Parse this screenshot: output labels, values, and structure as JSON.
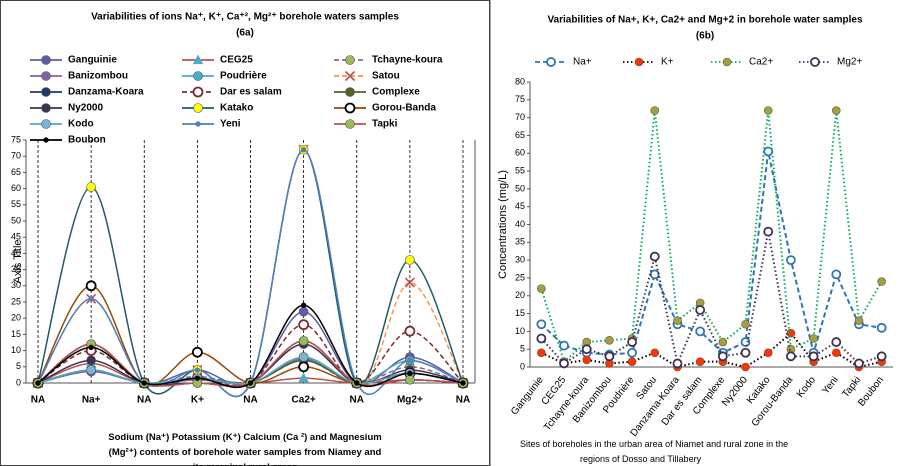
{
  "chart_data": [
    {
      "type": "line",
      "smooth": true,
      "title": "Variabilities of ions Na⁺, K⁺, Ca⁺², Mg²⁺ borehole waters samples",
      "subtitle": "(6a)",
      "y_label": "Axis Title",
      "x_label": "Sodium (Na⁺) Potassium (K⁺) Calcium (Ca ²) and Magnesium (Mg²⁺) contents of borehole water samples from Niamey and its marginal rural areas",
      "categories": [
        "NA",
        "Na+",
        "NA",
        "K+",
        "NA",
        "Ca2+",
        "NA",
        "Mg2+",
        "NA"
      ],
      "ylim": [
        0,
        75
      ],
      "yticks": [
        0,
        5,
        10,
        15,
        20,
        25,
        30,
        35,
        40,
        45,
        50,
        55,
        60,
        65,
        70,
        75
      ],
      "category_lines": true,
      "legend": "top",
      "legend_columns": 3,
      "series": [
        {
          "name": "Ganguinie",
          "color": "#5b5ea6",
          "marker": "circle",
          "marker_color": "#5b5ea6",
          "values": [
            0,
            12,
            0,
            4,
            0,
            22,
            0,
            8,
            0
          ]
        },
        {
          "name": "CEG25",
          "color": "#c0504d",
          "marker": "triangle",
          "marker_color": "#4bacc6",
          "values": [
            0,
            6,
            0,
            1,
            0,
            1.5,
            0,
            1,
            0
          ]
        },
        {
          "name": "Tchayne-koura",
          "color": "#8064a2",
          "dash": "dashed",
          "marker": "circle",
          "marker_color": "#9bbb59",
          "values": [
            0,
            4,
            0,
            2,
            0,
            7,
            0,
            5,
            0
          ]
        },
        {
          "name": "Banizombou",
          "color": "#8064a2",
          "marker": "circle",
          "marker_color": "#8064a2",
          "values": [
            0,
            3.5,
            0,
            1,
            0,
            7.5,
            0,
            3,
            0
          ]
        },
        {
          "name": "Poudrière",
          "color": "#4bacc6",
          "marker": "circle",
          "marker_color": "#4bacc6",
          "values": [
            0,
            4,
            0,
            1.5,
            0,
            8,
            0,
            7,
            0
          ]
        },
        {
          "name": "Satou",
          "color": "#f79646",
          "dash": "dashed",
          "marker": "x",
          "marker_color": "#c0504d",
          "values": [
            0,
            26,
            0,
            4,
            0,
            72,
            0,
            31,
            0
          ]
        },
        {
          "name": "Danzama-Koara",
          "color": "#1f3864",
          "marker": "circle",
          "marker_color": "#1f3864",
          "values": [
            0,
            12,
            0,
            0,
            0,
            13,
            0,
            1,
            0
          ]
        },
        {
          "name": "Dar es salam",
          "color": "#7b2c2c",
          "dash": "dashed",
          "marker": "open",
          "marker_color": "#7b2c2c",
          "values": [
            0,
            10,
            0,
            1.5,
            0,
            18,
            0,
            16,
            0
          ]
        },
        {
          "name": "Complexe",
          "color": "#4f6228",
          "marker": "circle",
          "marker_color": "#4f6228",
          "values": [
            0,
            4,
            0,
            1.5,
            0,
            7,
            0,
            3,
            0
          ]
        },
        {
          "name": "Ny2000",
          "color": "#3f3151",
          "marker": "circle",
          "marker_color": "#3f3151",
          "values": [
            0,
            7,
            0,
            0,
            0,
            12,
            0,
            4,
            0
          ]
        },
        {
          "name": "Katako",
          "color": "#215968",
          "marker": "circle",
          "marker_color": "#ffff00",
          "values": [
            0,
            60.5,
            0,
            4,
            0,
            72,
            0,
            38,
            0
          ]
        },
        {
          "name": "Gorou-Banda",
          "color": "#974806",
          "marker": "open",
          "marker_color": "#000000",
          "values": [
            0,
            30,
            0,
            9.5,
            0,
            5,
            0,
            3,
            0
          ]
        },
        {
          "name": "Kodo",
          "color": "#4bacc6",
          "marker": "circle",
          "marker_color": "#7fb2d8",
          "values": [
            0,
            4,
            0,
            1.5,
            0,
            8,
            0,
            3,
            0
          ]
        },
        {
          "name": "Yeni",
          "color": "#4f81bd",
          "marker": "dot",
          "marker_color": "#4f81bd",
          "values": [
            0,
            26,
            0,
            4,
            0,
            72,
            0,
            7,
            0
          ]
        },
        {
          "name": "Tapki",
          "color": "#c0504d",
          "marker": "circle",
          "marker_color": "#9bbb59",
          "values": [
            0,
            12,
            0,
            0,
            0,
            13,
            0,
            1,
            0
          ]
        },
        {
          "name": "Boubon",
          "color": "#000000",
          "marker": "dot",
          "marker_color": "#000000",
          "values": [
            0,
            11,
            0,
            1.5,
            0,
            24,
            0,
            3,
            0
          ]
        }
      ]
    },
    {
      "type": "line",
      "smooth": false,
      "title": "Variabilities of Na+, K+, Ca2+ and Mg+2 in borehole water samples",
      "subtitle": "(6b)",
      "y_label": "Concentrations (mg/L)",
      "x_label": "Sites of boreholes in the urban area of Niamet and rural zone in the regions of Dosso and Tillabery",
      "categories": [
        "Ganguinie",
        "CEG25",
        "Tchayne-koura",
        "Banizombou",
        "Poudrière",
        "Satou",
        "Danzama-Koara",
        "Dar es salam",
        "Complexe",
        "Ny2000",
        "Katako",
        "Gorou-Banda",
        "Kodo",
        "Yeni",
        "Tapki",
        "Boubon"
      ],
      "ylim": [
        0,
        80
      ],
      "yticks": [
        0,
        5,
        10,
        15,
        20,
        25,
        30,
        35,
        40,
        45,
        50,
        55,
        60,
        65,
        70,
        75,
        80
      ],
      "legend": "top",
      "legend_columns": 4,
      "series": [
        {
          "name": "Na+",
          "color": "#2e75b6",
          "dash": "dashed",
          "marker": "open",
          "marker_color": "#2e75b6",
          "values": [
            12,
            6,
            4,
            3.5,
            4,
            26,
            12,
            10,
            4,
            7,
            60.5,
            30,
            4,
            26,
            12,
            11
          ]
        },
        {
          "name": "K+",
          "color": "#000000",
          "dash": "dotted",
          "marker": "circle",
          "marker_color": "#ff3300",
          "values": [
            4,
            1,
            2,
            1,
            1.5,
            4,
            0,
            1.5,
            1.5,
            0,
            4,
            9.5,
            1.5,
            4,
            0,
            1.5
          ]
        },
        {
          "name": "Ca2+",
          "color": "#00b050",
          "dash": "dotted",
          "marker": "circle",
          "marker_color": "#a5a03c",
          "values": [
            22,
            1.5,
            7,
            7.5,
            8,
            72,
            13,
            18,
            7,
            12,
            72,
            5,
            8,
            72,
            13,
            24
          ]
        },
        {
          "name": "Mg2+",
          "color": "#3f3151",
          "dash": "dotted",
          "marker": "open",
          "marker_color": "#3f3151",
          "values": [
            8,
            1,
            5,
            3,
            7,
            31,
            1,
            16,
            3,
            4,
            38,
            3,
            3,
            7,
            1,
            3
          ]
        }
      ]
    }
  ]
}
